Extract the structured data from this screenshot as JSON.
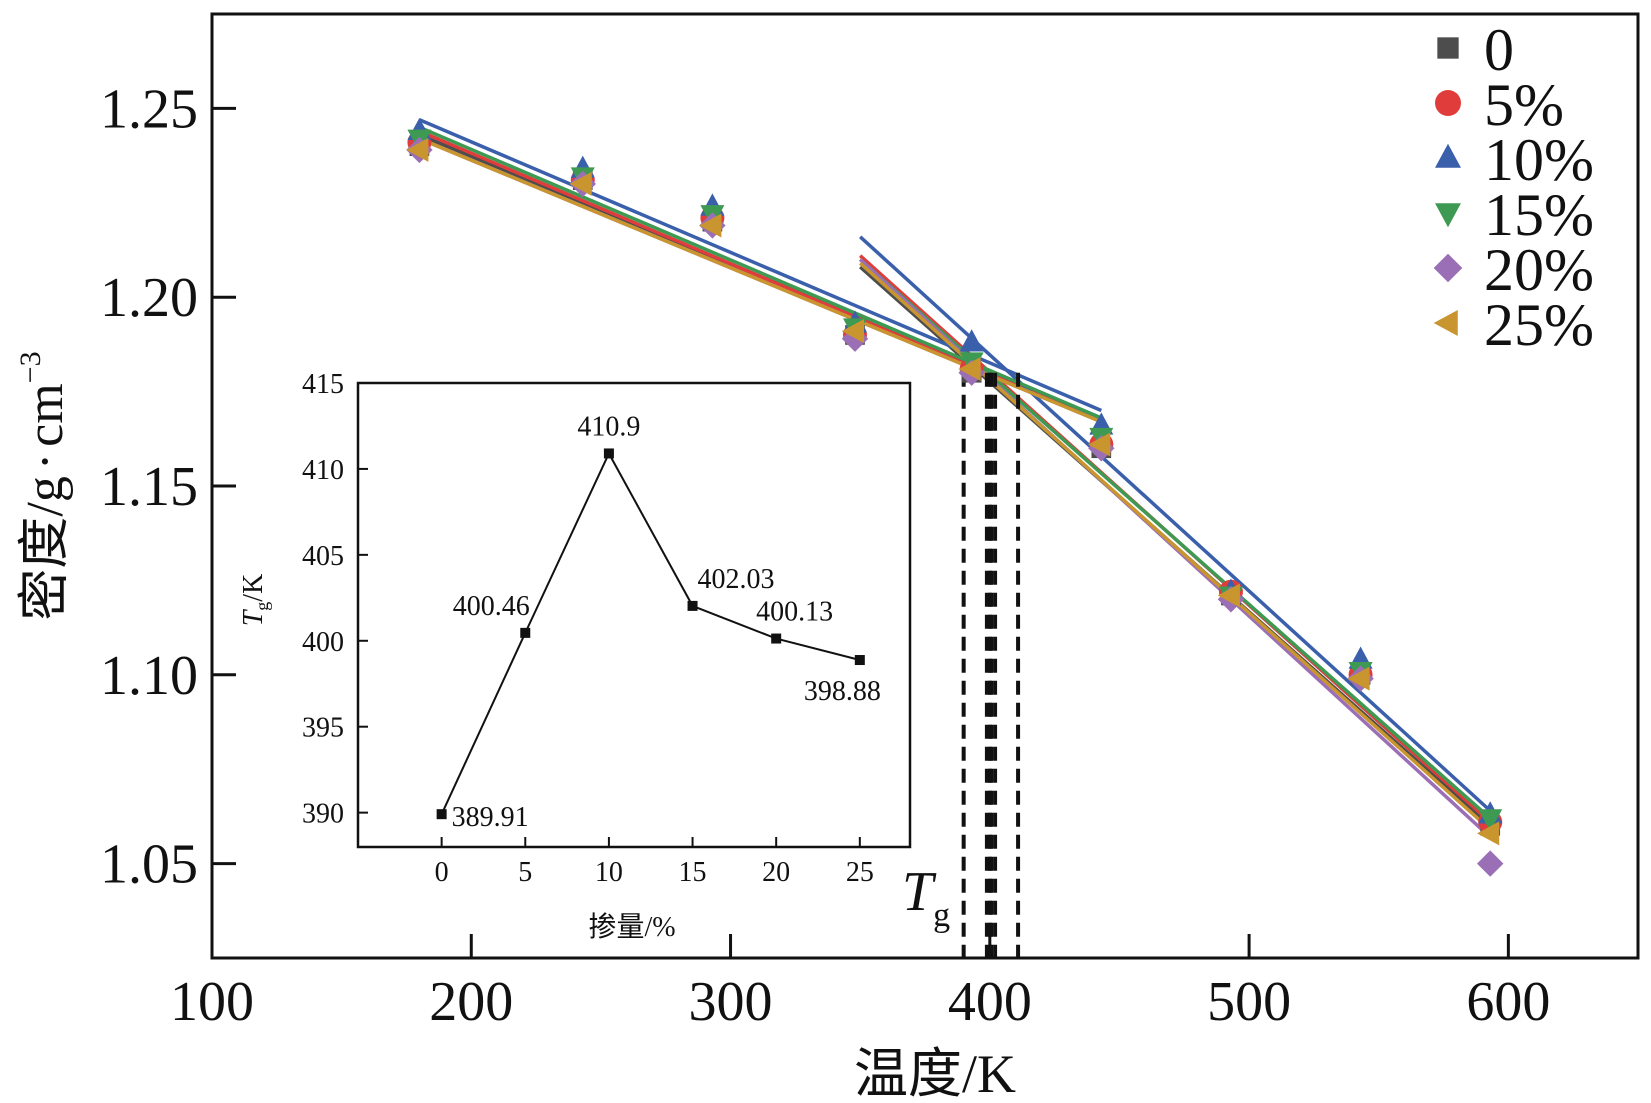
{
  "chart_data": [
    {
      "type": "scatter",
      "title": "",
      "xlabel": "温度/K",
      "ylabel_main": "密度/g",
      "ylabel_dot": "·",
      "ylabel_unit": "cm",
      "ylabel_exp": "−3",
      "xlim": [
        100,
        650
      ],
      "ylim": [
        1.025,
        1.275
      ],
      "x_ticks": [
        100,
        200,
        300,
        400,
        500,
        600
      ],
      "y_ticks": [
        1.05,
        1.1,
        1.15,
        1.2,
        1.25
      ],
      "legend_position": "top-right",
      "tg_annotation": {
        "main": "T",
        "sub": "g"
      },
      "tg_values": [
        389.91,
        400.46,
        410.9,
        402.03,
        400.13,
        398.88
      ],
      "series": [
        {
          "name": "0",
          "marker": "square",
          "color": "#4d4d4d",
          "points": [
            [
              180,
              1.24
            ],
            [
              243,
              1.231
            ],
            [
              293,
              1.22
            ],
            [
              348,
              1.19
            ],
            [
              393,
              1.18
            ],
            [
              443,
              1.16
            ],
            [
              493,
              1.121
            ],
            [
              543,
              1.1
            ],
            [
              593,
              1.06
            ]
          ],
          "fit_glassy": [
            [
              180,
              1.243
            ],
            [
              443,
              1.168
            ]
          ],
          "fit_rubbery": [
            [
              350,
              1.208
            ],
            [
              593,
              1.06
            ]
          ]
        },
        {
          "name": "5%",
          "marker": "circle",
          "color": "#e03c3c",
          "points": [
            [
              180,
              1.241
            ],
            [
              243,
              1.231
            ],
            [
              293,
              1.221
            ],
            [
              348,
              1.19
            ],
            [
              393,
              1.181
            ],
            [
              443,
              1.161
            ],
            [
              493,
              1.122
            ],
            [
              543,
              1.1
            ],
            [
              593,
              1.061
            ]
          ],
          "fit_glassy": [
            [
              180,
              1.244
            ],
            [
              443,
              1.167
            ]
          ],
          "fit_rubbery": [
            [
              350,
              1.211
            ],
            [
              593,
              1.061
            ]
          ]
        },
        {
          "name": "10%",
          "marker": "triangle-up",
          "color": "#3a5fab",
          "points": [
            [
              180,
              1.244
            ],
            [
              243,
              1.234
            ],
            [
              293,
              1.224
            ],
            [
              348,
              1.193
            ],
            [
              393,
              1.188
            ],
            [
              443,
              1.166
            ],
            [
              493,
              1.122
            ],
            [
              543,
              1.104
            ],
            [
              593,
              1.063
            ]
          ],
          "fit_glassy": [
            [
              180,
              1.247
            ],
            [
              443,
              1.17
            ]
          ],
          "fit_rubbery": [
            [
              350,
              1.216
            ],
            [
              593,
              1.064
            ]
          ]
        },
        {
          "name": "15%",
          "marker": "triangle-down",
          "color": "#3e9a52",
          "points": [
            [
              180,
              1.242
            ],
            [
              243,
              1.232
            ],
            [
              293,
              1.222
            ],
            [
              348,
              1.192
            ],
            [
              393,
              1.183
            ],
            [
              443,
              1.163
            ],
            [
              493,
              1.121
            ],
            [
              543,
              1.101
            ],
            [
              593,
              1.062
            ]
          ],
          "fit_glassy": [
            [
              180,
              1.245
            ],
            [
              443,
              1.168
            ]
          ],
          "fit_rubbery": [
            [
              350,
              1.21
            ],
            [
              593,
              1.062
            ]
          ]
        },
        {
          "name": "20%",
          "marker": "diamond",
          "color": "#9b6fb5",
          "points": [
            [
              180,
              1.239
            ],
            [
              243,
              1.23
            ],
            [
              293,
              1.219
            ],
            [
              348,
              1.189
            ],
            [
              393,
              1.18
            ],
            [
              443,
              1.16
            ],
            [
              493,
              1.12
            ],
            [
              543,
              1.099
            ],
            [
              593,
              1.05
            ]
          ],
          "fit_glassy": [
            [
              180,
              1.242
            ],
            [
              443,
              1.167
            ]
          ],
          "fit_rubbery": [
            [
              350,
              1.21
            ],
            [
              593,
              1.057
            ]
          ]
        },
        {
          "name": "25%",
          "marker": "triangle-left",
          "color": "#c9952e",
          "points": [
            [
              180,
              1.239
            ],
            [
              243,
              1.23
            ],
            [
              293,
              1.219
            ],
            [
              348,
              1.191
            ],
            [
              393,
              1.181
            ],
            [
              443,
              1.161
            ],
            [
              493,
              1.121
            ],
            [
              543,
              1.099
            ],
            [
              593,
              1.058
            ]
          ],
          "fit_glassy": [
            [
              180,
              1.242
            ],
            [
              443,
              1.167
            ]
          ],
          "fit_rubbery": [
            [
              350,
              1.209
            ],
            [
              593,
              1.059
            ]
          ]
        }
      ]
    },
    {
      "type": "line",
      "title": "",
      "xlabel": "掺量/%",
      "ylabel_main": "T",
      "ylabel_sub": "g",
      "ylabel_unit": "/K",
      "xlim": [
        -5,
        28
      ],
      "ylim": [
        388,
        415
      ],
      "x_ticks": [
        0,
        5,
        10,
        15,
        20,
        25
      ],
      "y_ticks": [
        390,
        395,
        400,
        405,
        410,
        415
      ],
      "x": [
        0,
        5,
        10,
        15,
        20,
        25
      ],
      "y": [
        389.91,
        400.46,
        410.9,
        402.03,
        400.13,
        398.88
      ],
      "data_labels": [
        "389.91",
        "400.46",
        "410.9",
        "402.03",
        "400.13",
        "398.88"
      ]
    }
  ]
}
